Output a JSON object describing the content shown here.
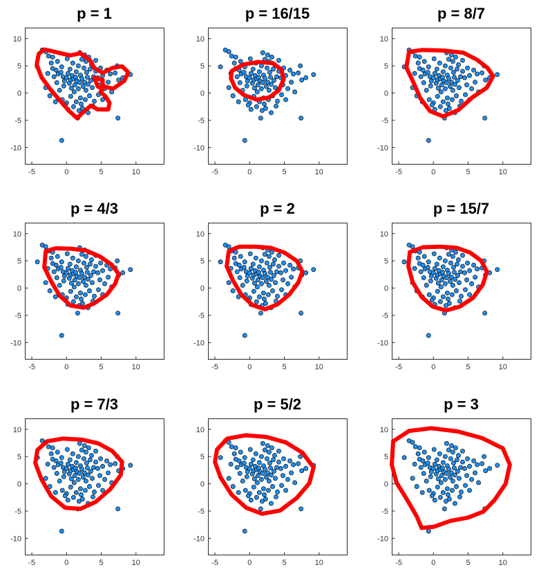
{
  "colors": {
    "points": "#1f8ff0",
    "point_edge": "#0a0a0a",
    "boundary": "#ff0000"
  },
  "chart_data": {
    "type": "scatter",
    "xlim": [
      -6,
      14
    ],
    "ylim": [
      -13,
      12
    ],
    "xticks": [
      -5,
      0,
      5,
      10
    ],
    "yticks": [
      10,
      5,
      0,
      -5,
      -10
    ],
    "grid": false,
    "points": [
      [
        -4.2,
        4.8
      ],
      [
        -3.5,
        7.9
      ],
      [
        -3.0,
        7.6
      ],
      [
        -2.6,
        6.8
      ],
      [
        -2.2,
        5.5
      ],
      [
        -2.0,
        4.5
      ],
      [
        -1.5,
        4.2
      ],
      [
        -1.2,
        3.5
      ],
      [
        -0.8,
        3.8
      ],
      [
        -0.5,
        3.0
      ],
      [
        -0.3,
        2.2
      ],
      [
        0.0,
        2.8
      ],
      [
        0.2,
        3.6
      ],
      [
        0.4,
        1.8
      ],
      [
        0.6,
        2.4
      ],
      [
        0.8,
        3.2
      ],
      [
        1.0,
        2.6
      ],
      [
        1.2,
        1.5
      ],
      [
        1.4,
        3.9
      ],
      [
        1.5,
        2.2
      ],
      [
        1.7,
        0.8
      ],
      [
        1.9,
        1.9
      ],
      [
        2.0,
        3.3
      ],
      [
        2.2,
        2.7
      ],
      [
        2.4,
        1.2
      ],
      [
        2.6,
        2.0
      ],
      [
        2.8,
        0.5
      ],
      [
        3.0,
        2.9
      ],
      [
        3.1,
        1.6
      ],
      [
        3.3,
        -0.5
      ],
      [
        3.5,
        2.3
      ],
      [
        3.7,
        1.0
      ],
      [
        3.9,
        3.0
      ],
      [
        4.0,
        -1.5
      ],
      [
        4.2,
        4.0
      ],
      [
        4.5,
        2.8
      ],
      [
        4.8,
        1.5
      ],
      [
        5.2,
        3.2
      ],
      [
        5.5,
        0.8
      ],
      [
        6.0,
        2.0
      ],
      [
        2.2,
        6.2
      ],
      [
        2.8,
        5.8
      ],
      [
        3.2,
        6.6
      ],
      [
        1.9,
        7.4
      ],
      [
        2.6,
        7.0
      ],
      [
        3.6,
        5.2
      ],
      [
        0.9,
        5.5
      ],
      [
        -2.0,
        6.6
      ],
      [
        -1.3,
        5.8
      ],
      [
        4.2,
        6.0
      ],
      [
        -3.0,
        1.0
      ],
      [
        -2.4,
        -0.5
      ],
      [
        -1.4,
        1.9
      ],
      [
        -1.0,
        0.5
      ],
      [
        -0.6,
        -1.2
      ],
      [
        0.0,
        -1.8
      ],
      [
        0.6,
        -0.6
      ],
      [
        1.0,
        -2.5
      ],
      [
        1.4,
        -1.6
      ],
      [
        1.8,
        -3.2
      ],
      [
        2.3,
        -2.8
      ],
      [
        2.7,
        -1.2
      ],
      [
        3.1,
        -3.6
      ],
      [
        0.2,
        -3.0
      ],
      [
        -0.2,
        -2.2
      ],
      [
        1.6,
        -4.6
      ],
      [
        3.8,
        -2.4
      ],
      [
        7.4,
        -4.6
      ],
      [
        -0.7,
        -8.7
      ],
      [
        6.5,
        0.2
      ],
      [
        7.0,
        3.7
      ],
      [
        7.5,
        2.4
      ],
      [
        8.1,
        2.8
      ],
      [
        9.2,
        3.4
      ],
      [
        7.3,
        5.0
      ],
      [
        5.8,
        4.2
      ],
      [
        6.3,
        3.5
      ],
      [
        4.9,
        4.6
      ],
      [
        -1.8,
        3.0
      ],
      [
        -0.7,
        4.8
      ],
      [
        0.5,
        4.4
      ],
      [
        1.1,
        0.2
      ],
      [
        2.0,
        -0.9
      ],
      [
        2.9,
        3.8
      ],
      [
        -0.4,
        1.3
      ],
      [
        0.7,
        0.9
      ],
      [
        1.3,
        2.9
      ],
      [
        2.5,
        4.6
      ],
      [
        -2.7,
        3.6
      ],
      [
        0.1,
        6.3
      ],
      [
        4.6,
        -0.3
      ],
      [
        3.4,
        4.4
      ],
      [
        1.7,
        5.0
      ],
      [
        -1.6,
        -1.6
      ],
      [
        5.2,
        -1.2
      ],
      [
        2.1,
        -2.0
      ]
    ],
    "panels": [
      {
        "title": "p = 1",
        "boundary": [
          [
            -4.0,
            7.2
          ],
          [
            -3.2,
            8.0
          ],
          [
            -1.8,
            7.6
          ],
          [
            0.5,
            6.9
          ],
          [
            2.0,
            7.3
          ],
          [
            3.4,
            6.0
          ],
          [
            4.0,
            4.6
          ],
          [
            5.2,
            3.7
          ],
          [
            6.6,
            4.6
          ],
          [
            8.0,
            4.9
          ],
          [
            8.9,
            3.8
          ],
          [
            8.3,
            2.2
          ],
          [
            6.7,
            0.8
          ],
          [
            5.4,
            1.2
          ],
          [
            4.9,
            0.2
          ],
          [
            5.6,
            -0.6
          ],
          [
            6.2,
            -1.8
          ],
          [
            6.0,
            -3.0
          ],
          [
            4.5,
            -3.0
          ],
          [
            3.5,
            -2.3
          ],
          [
            2.5,
            -3.4
          ],
          [
            1.5,
            -4.6
          ],
          [
            0.3,
            -3.2
          ],
          [
            -1.2,
            -1.0
          ],
          [
            -2.4,
            0.8
          ],
          [
            -3.6,
            2.9
          ],
          [
            -4.3,
            5.2
          ],
          [
            -4.0,
            7.2
          ]
        ],
        "inner": [
          [
            4.0,
            2.8
          ],
          [
            5.2,
            2.4
          ],
          [
            5.2,
            0.8
          ],
          [
            4.5,
            1.2
          ],
          [
            4.0,
            2.8
          ]
        ]
      },
      {
        "title": "p = 16/15",
        "boundary": [
          [
            -2.6,
            4.0
          ],
          [
            -1.0,
            5.2
          ],
          [
            1.2,
            5.7
          ],
          [
            3.3,
            5.5
          ],
          [
            4.6,
            4.3
          ],
          [
            4.9,
            2.5
          ],
          [
            4.2,
            0.5
          ],
          [
            2.8,
            -0.8
          ],
          [
            1.0,
            -1.2
          ],
          [
            -0.8,
            -0.4
          ],
          [
            -2.1,
            1.0
          ],
          [
            -2.7,
            2.7
          ],
          [
            -2.6,
            4.0
          ]
        ]
      },
      {
        "title": "p = 8/7",
        "boundary": [
          [
            -3.5,
            7.6
          ],
          [
            -1.6,
            7.9
          ],
          [
            1.5,
            7.8
          ],
          [
            4.3,
            7.4
          ],
          [
            6.3,
            6.1
          ],
          [
            7.8,
            4.6
          ],
          [
            8.6,
            3.1
          ],
          [
            7.7,
            1.0
          ],
          [
            5.6,
            -0.8
          ],
          [
            3.6,
            -3.1
          ],
          [
            1.4,
            -4.3
          ],
          [
            -0.5,
            -3.3
          ],
          [
            -1.9,
            -0.9
          ],
          [
            -2.9,
            2.0
          ],
          [
            -3.9,
            4.7
          ],
          [
            -3.5,
            7.6
          ]
        ]
      },
      {
        "title": "p = 4/3",
        "boundary": [
          [
            -3.0,
            6.8
          ],
          [
            -1.5,
            7.3
          ],
          [
            0.8,
            7.2
          ],
          [
            2.8,
            6.9
          ],
          [
            4.8,
            5.8
          ],
          [
            6.5,
            4.3
          ],
          [
            7.5,
            2.6
          ],
          [
            7.0,
            0.8
          ],
          [
            5.8,
            -1.2
          ],
          [
            4.0,
            -2.8
          ],
          [
            2.5,
            -3.6
          ],
          [
            0.6,
            -3.2
          ],
          [
            -1.0,
            -1.4
          ],
          [
            -2.2,
            1.2
          ],
          [
            -3.2,
            3.8
          ],
          [
            -3.0,
            6.8
          ]
        ]
      },
      {
        "title": "p = 2",
        "boundary": [
          [
            -3.0,
            6.8
          ],
          [
            -1.5,
            7.6
          ],
          [
            0.8,
            7.6
          ],
          [
            3.0,
            7.4
          ],
          [
            5.0,
            6.5
          ],
          [
            6.8,
            5.0
          ],
          [
            7.6,
            3.0
          ],
          [
            7.0,
            1.0
          ],
          [
            5.7,
            -1.2
          ],
          [
            4.0,
            -3.0
          ],
          [
            2.2,
            -3.9
          ],
          [
            0.4,
            -3.1
          ],
          [
            -1.2,
            -1.2
          ],
          [
            -2.4,
            1.4
          ],
          [
            -3.3,
            4.0
          ],
          [
            -3.0,
            6.8
          ]
        ]
      },
      {
        "title": "p = 15/7",
        "boundary": [
          [
            -3.4,
            6.6
          ],
          [
            -1.5,
            7.5
          ],
          [
            1.0,
            7.6
          ],
          [
            3.3,
            7.4
          ],
          [
            5.3,
            6.5
          ],
          [
            6.9,
            5.0
          ],
          [
            7.7,
            3.0
          ],
          [
            7.1,
            0.6
          ],
          [
            5.7,
            -1.8
          ],
          [
            3.8,
            -3.4
          ],
          [
            1.8,
            -4.1
          ],
          [
            -0.1,
            -3.4
          ],
          [
            -1.7,
            -1.6
          ],
          [
            -3.0,
            1.1
          ],
          [
            -3.6,
            4.0
          ],
          [
            -3.4,
            6.6
          ]
        ]
      },
      {
        "title": "p = 7/3",
        "boundary": [
          [
            -4.2,
            6.2
          ],
          [
            -2.8,
            7.8
          ],
          [
            -0.5,
            8.3
          ],
          [
            2.2,
            8.1
          ],
          [
            4.6,
            7.4
          ],
          [
            6.6,
            6.0
          ],
          [
            8.0,
            4.0
          ],
          [
            7.8,
            1.6
          ],
          [
            6.3,
            -1.0
          ],
          [
            4.2,
            -3.3
          ],
          [
            2.0,
            -4.6
          ],
          [
            -0.2,
            -4.4
          ],
          [
            -2.2,
            -2.3
          ],
          [
            -3.6,
            0.8
          ],
          [
            -4.5,
            3.8
          ],
          [
            -4.2,
            6.2
          ]
        ]
      },
      {
        "title": "p = 5/2",
        "boundary": [
          [
            -4.7,
            6.3
          ],
          [
            -3.2,
            8.3
          ],
          [
            -0.6,
            8.9
          ],
          [
            2.4,
            8.6
          ],
          [
            5.2,
            7.6
          ],
          [
            7.6,
            5.7
          ],
          [
            9.2,
            3.0
          ],
          [
            8.6,
            0.1
          ],
          [
            6.8,
            -2.6
          ],
          [
            4.4,
            -4.9
          ],
          [
            1.8,
            -5.5
          ],
          [
            -0.5,
            -4.4
          ],
          [
            -2.6,
            -2.0
          ],
          [
            -4.2,
            1.2
          ],
          [
            -5.0,
            4.0
          ],
          [
            -4.7,
            6.3
          ]
        ]
      },
      {
        "title": "p = 3",
        "boundary": [
          [
            -5.8,
            7.8
          ],
          [
            -3.5,
            9.7
          ],
          [
            -0.3,
            10.2
          ],
          [
            3.5,
            9.6
          ],
          [
            7.0,
            8.4
          ],
          [
            10.0,
            6.5
          ],
          [
            11.0,
            3.5
          ],
          [
            10.4,
            0.0
          ],
          [
            8.8,
            -3.0
          ],
          [
            7.2,
            -5.1
          ],
          [
            5.0,
            -6.2
          ],
          [
            2.5,
            -6.8
          ],
          [
            0.0,
            -7.9
          ],
          [
            -1.7,
            -8.1
          ],
          [
            -2.4,
            -6.0
          ],
          [
            -3.8,
            -2.9
          ],
          [
            -5.3,
            0.2
          ],
          [
            -6.0,
            3.5
          ],
          [
            -5.8,
            7.8
          ]
        ]
      }
    ]
  }
}
